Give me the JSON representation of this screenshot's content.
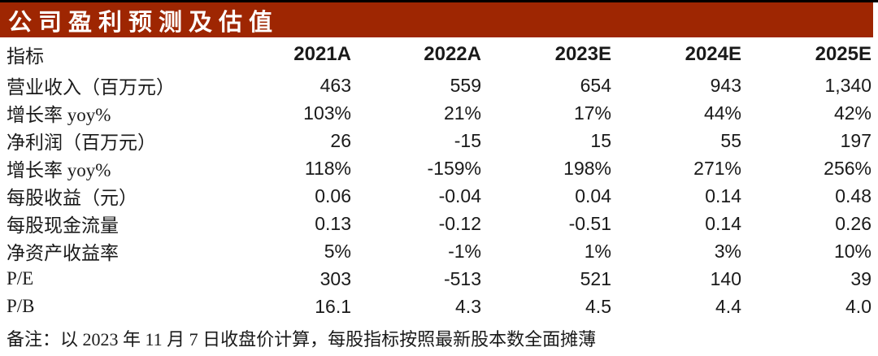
{
  "title": "公司盈利预测及估值",
  "table": {
    "columns": [
      "指标",
      "2021A",
      "2022A",
      "2023E",
      "2024E",
      "2025E"
    ],
    "rows": [
      {
        "label": "营业收入（百万元）",
        "values": [
          "463",
          "559",
          "654",
          "943",
          "1,340"
        ]
      },
      {
        "label": "增长率 yoy%",
        "values": [
          "103%",
          "21%",
          "17%",
          "44%",
          "42%"
        ]
      },
      {
        "label": "净利润（百万元）",
        "values": [
          "26",
          "-15",
          "15",
          "55",
          "197"
        ]
      },
      {
        "label": "增长率 yoy%",
        "values": [
          "118%",
          "-159%",
          "198%",
          "271%",
          "256%"
        ]
      },
      {
        "label": "每股收益（元）",
        "values": [
          "0.06",
          "-0.04",
          "0.04",
          "0.14",
          "0.48"
        ]
      },
      {
        "label": "每股现金流量",
        "values": [
          "0.13",
          "-0.12",
          "-0.51",
          "0.14",
          "0.26"
        ]
      },
      {
        "label": "净资产收益率",
        "values": [
          "5%",
          "-1%",
          "1%",
          "3%",
          "10%"
        ]
      },
      {
        "label": "P/E",
        "values": [
          "303",
          "-513",
          "521",
          "140",
          "39"
        ]
      },
      {
        "label": "P/B",
        "values": [
          "16.1",
          "4.3",
          "4.5",
          "4.4",
          "4.0"
        ]
      }
    ]
  },
  "note": "备注：以 2023 年 11 月 7 日收盘价计算，每股指标按照最新股本数全面摊薄",
  "colors": {
    "header_bar": "#9E2602",
    "top_rule": "#000000",
    "title_text": "#FFFFFF",
    "text": "#1A1A1A"
  }
}
